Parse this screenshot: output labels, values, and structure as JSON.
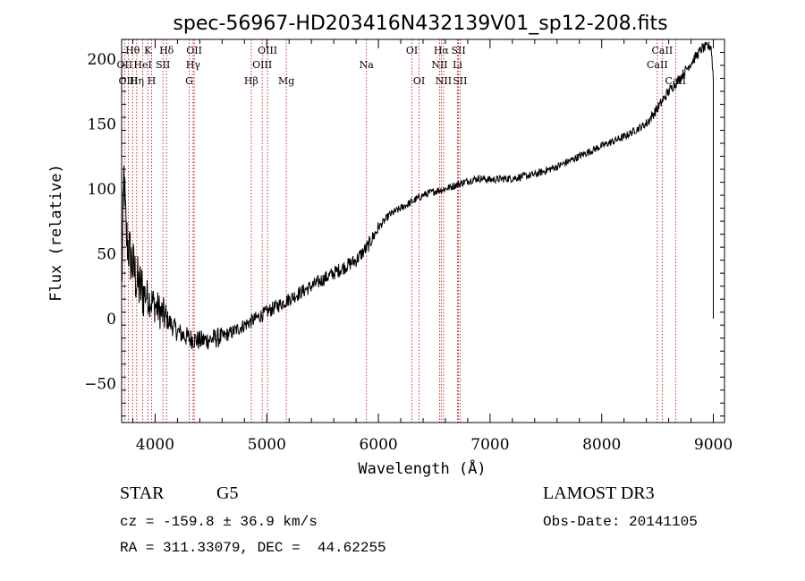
{
  "chart_data": {
    "type": "line",
    "title": "spec-56967-HD203416N432139V01_sp12-208.fits",
    "xlabel": "Wavelength (Å)",
    "ylabel": "Flux (relative)",
    "xlim": [
      3700,
      9100
    ],
    "ylim": [
      -80,
      215
    ],
    "x_ticks": [
      4000,
      5000,
      6000,
      7000,
      8000,
      9000
    ],
    "y_ticks": [
      -50,
      0,
      50,
      100,
      150,
      200
    ],
    "series": [
      {
        "name": "flux",
        "anchors": [
          [
            3700,
            20
          ],
          [
            3720,
            110
          ],
          [
            3740,
            65
          ],
          [
            3760,
            55
          ],
          [
            3800,
            40
          ],
          [
            3850,
            25
          ],
          [
            3900,
            20
          ],
          [
            3950,
            15
          ],
          [
            4000,
            10
          ],
          [
            4100,
            0
          ],
          [
            4200,
            -10
          ],
          [
            4300,
            -15
          ],
          [
            4400,
            -17
          ],
          [
            4500,
            -16
          ],
          [
            4600,
            -14
          ],
          [
            4700,
            -10
          ],
          [
            4800,
            -5
          ],
          [
            4900,
            0
          ],
          [
            5000,
            5
          ],
          [
            5200,
            15
          ],
          [
            5400,
            25
          ],
          [
            5600,
            35
          ],
          [
            5800,
            45
          ],
          [
            5900,
            55
          ],
          [
            6000,
            70
          ],
          [
            6100,
            80
          ],
          [
            6200,
            85
          ],
          [
            6300,
            90
          ],
          [
            6400,
            95
          ],
          [
            6500,
            98
          ],
          [
            6600,
            100
          ],
          [
            6700,
            103
          ],
          [
            6800,
            106
          ],
          [
            6900,
            108
          ],
          [
            7000,
            107
          ],
          [
            7200,
            108
          ],
          [
            7400,
            111
          ],
          [
            7600,
            117
          ],
          [
            7800,
            125
          ],
          [
            8000,
            133
          ],
          [
            8200,
            140
          ],
          [
            8400,
            150
          ],
          [
            8500,
            162
          ],
          [
            8600,
            175
          ],
          [
            8700,
            185
          ],
          [
            8800,
            197
          ],
          [
            8900,
            208
          ],
          [
            8980,
            210
          ],
          [
            9000,
            185
          ]
        ]
      }
    ],
    "spectral_lines": [
      {
        "label": "Hθ",
        "wavelength": 3798,
        "row": 0,
        "anchor": "middle"
      },
      {
        "label": "K",
        "wavelength": 3934,
        "row": 0,
        "anchor": "middle"
      },
      {
        "label": "Hδ",
        "wavelength": 4102,
        "row": 0,
        "anchor": "middle"
      },
      {
        "label": "OII",
        "wavelength": 4350,
        "row": 0,
        "anchor": "middle"
      },
      {
        "label": "OIII",
        "wavelength": 5007,
        "row": 0,
        "anchor": "middle"
      },
      {
        "label": "OI",
        "wavelength": 6300,
        "row": 0,
        "anchor": "middle"
      },
      {
        "label": "Hα",
        "wavelength": 6563,
        "row": 0,
        "anchor": "middle"
      },
      {
        "label": "SII",
        "wavelength": 6717,
        "row": 0,
        "anchor": "middle"
      },
      {
        "label": "CaII",
        "wavelength": 8542,
        "row": 0,
        "anchor": "middle"
      },
      {
        "label": "OII",
        "wavelength": 3727,
        "row": 1,
        "anchor": "middle"
      },
      {
        "label": "HeI",
        "wavelength": 3889,
        "row": 1,
        "anchor": "middle"
      },
      {
        "label": "SII",
        "wavelength": 4070,
        "row": 1,
        "anchor": "middle"
      },
      {
        "label": "Hγ",
        "wavelength": 4340,
        "row": 1,
        "anchor": "middle"
      },
      {
        "label": "OIII",
        "wavelength": 4959,
        "row": 1,
        "anchor": "middle"
      },
      {
        "label": "Na",
        "wavelength": 5893,
        "row": 1,
        "anchor": "middle"
      },
      {
        "label": "NII",
        "wavelength": 6548,
        "row": 1,
        "anchor": "middle"
      },
      {
        "label": "Li",
        "wavelength": 6708,
        "row": 1,
        "anchor": "middle"
      },
      {
        "label": "CaII",
        "wavelength": 8498,
        "row": 1,
        "anchor": "middle"
      },
      {
        "label": "OIII",
        "wavelength": 3760,
        "row": 2,
        "anchor": "middle"
      },
      {
        "label": "Hη",
        "wavelength": 3835,
        "row": 2,
        "anchor": "middle"
      },
      {
        "label": "H",
        "wavelength": 3969,
        "row": 2,
        "anchor": "middle"
      },
      {
        "label": "G",
        "wavelength": 4305,
        "row": 2,
        "anchor": "middle"
      },
      {
        "label": "Hβ",
        "wavelength": 4861,
        "row": 2,
        "anchor": "middle"
      },
      {
        "label": "Mg",
        "wavelength": 5175,
        "row": 2,
        "anchor": "middle"
      },
      {
        "label": "OI",
        "wavelength": 6364,
        "row": 2,
        "anchor": "middle"
      },
      {
        "label": "NII",
        "wavelength": 6584,
        "row": 2,
        "anchor": "middle"
      },
      {
        "label": "SII",
        "wavelength": 6731,
        "row": 2,
        "anchor": "middle"
      },
      {
        "label": "CaII",
        "wavelength": 8662,
        "row": 2,
        "anchor": "middle"
      }
    ]
  },
  "footer": {
    "object_class": "STAR",
    "subclass": "G5",
    "survey": "LAMOST DR3",
    "cz": "cz = -159.8 ± 36.9 km/s",
    "obs_date": "Obs-Date: 20141105",
    "coords": "RA = 311.33079, DEC =  44.62255"
  },
  "colors": {
    "spectrum": "#000000",
    "line_markers": "#c00000",
    "axes": "#000000"
  }
}
